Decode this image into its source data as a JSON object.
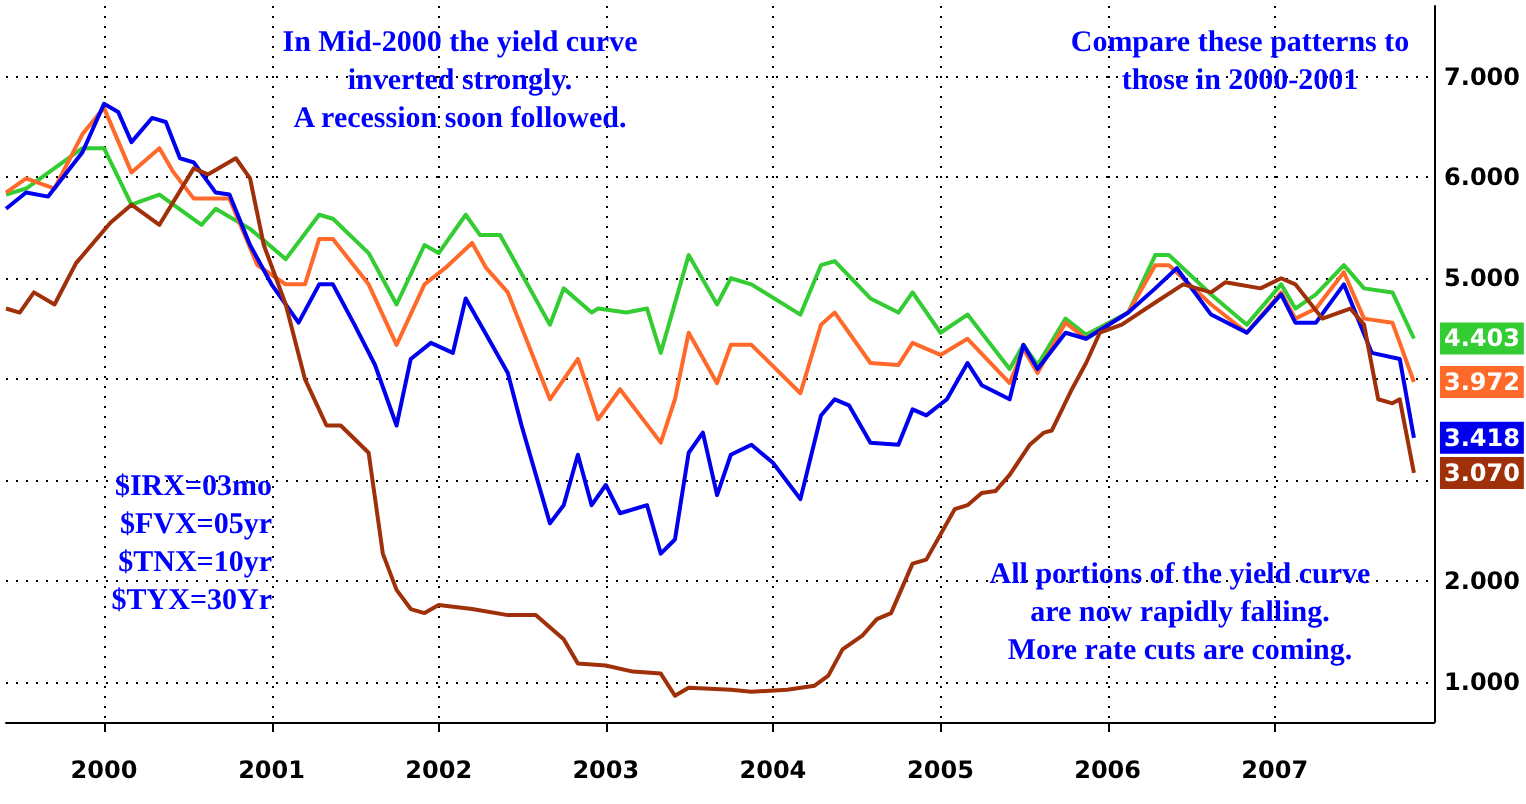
{
  "chart_data": {
    "type": "line",
    "annotations": [
      "In Mid-2000 the yield curve\ninverted strongly.\nA recession soon followed.",
      "Compare these patterns to\nthose in 2000-2001",
      "All portions of the yield curve\nare now rapidly falling.\nMore rate cuts are coming.",
      "$IRX=03mo\n$FVX=05yr\n$TNX=10yr\n$TYX=30Yr"
    ],
    "xlim": [
      "1999-06-01",
      "2007-12-15"
    ],
    "xticks": [
      {
        "value": "2000-01-01",
        "label": "2000"
      },
      {
        "value": "2001-01-01",
        "label": "2001"
      },
      {
        "value": "2002-01-01",
        "label": "2002"
      },
      {
        "value": "2003-01-01",
        "label": "2003"
      },
      {
        "value": "2004-01-01",
        "label": "2004"
      },
      {
        "value": "2005-01-01",
        "label": "2005"
      },
      {
        "value": "2006-01-01",
        "label": "2006"
      },
      {
        "value": "2007-01-01",
        "label": "2007"
      }
    ],
    "ylim": [
      0.6,
      7.7
    ],
    "yticks": [
      {
        "value": 1,
        "label": "1.000"
      },
      {
        "value": 2,
        "label": "2.000"
      },
      {
        "value": 3,
        "label": null
      },
      {
        "value": 4,
        "label": null
      },
      {
        "value": 5,
        "label": "5.000"
      },
      {
        "value": 6,
        "label": "6.000"
      },
      {
        "value": 7,
        "label": "7.000"
      }
    ],
    "grid": true,
    "series": [
      {
        "color": "#33cc33",
        "x": [
          "1999-06-01",
          "1999-07-15",
          "1999-11-15",
          "2000-01-01",
          "2000-03-01",
          "2000-05-01",
          "2000-08-01",
          "2000-09-01",
          "2000-11-15",
          "2001-02-01",
          "2001-04-15",
          "2001-05-15",
          "2001-08-01",
          "2001-10-01",
          "2001-12-01",
          "2002-01-01",
          "2002-03-01",
          "2002-04-01",
          "2002-05-15",
          "2002-09-01",
          "2002-10-01",
          "2002-12-01",
          "2002-12-15",
          "2003-02-15",
          "2003-04-01",
          "2003-05-01",
          "2003-07-01",
          "2003-09-01",
          "2003-10-01",
          "2003-11-15",
          "2004-03-01",
          "2004-04-15",
          "2004-05-15",
          "2004-08-01",
          "2004-10-01",
          "2004-11-01",
          "2005-01-01",
          "2005-03-01",
          "2005-06-01",
          "2005-07-01",
          "2005-08-01",
          "2005-10-01",
          "2005-11-15",
          "2006-02-15",
          "2006-04-15",
          "2006-05-15",
          "2006-08-15",
          "2006-11-01",
          "2007-01-15",
          "2007-02-15",
          "2007-04-01",
          "2007-06-01",
          "2007-07-15",
          "2007-09-15",
          "2007-11-01"
        ],
        "values": [
          5.83,
          5.89,
          6.29,
          6.29,
          5.73,
          5.83,
          5.53,
          5.69,
          5.49,
          5.19,
          5.63,
          5.59,
          5.25,
          4.74,
          5.33,
          5.25,
          5.63,
          5.43,
          5.43,
          4.54,
          4.9,
          4.66,
          4.7,
          4.66,
          4.7,
          4.26,
          5.23,
          4.74,
          5.0,
          4.94,
          4.64,
          5.13,
          5.17,
          4.8,
          4.66,
          4.86,
          4.46,
          4.64,
          4.1,
          4.34,
          4.14,
          4.6,
          4.44,
          4.66,
          5.23,
          5.23,
          4.84,
          4.54,
          4.94,
          4.7,
          4.84,
          5.13,
          4.9,
          4.86,
          4.403
        ],
        "value_labels": [
          null,
          null,
          null,
          null,
          null,
          null,
          null,
          null,
          null,
          null,
          null,
          null,
          null,
          null,
          null,
          null,
          null,
          null,
          null,
          null,
          null,
          null,
          null,
          null,
          null,
          null,
          null,
          null,
          null,
          null,
          null,
          null,
          null,
          null,
          null,
          null,
          null,
          null,
          null,
          null,
          null,
          null,
          null,
          null,
          null,
          null,
          null,
          null,
          null,
          null,
          null,
          null,
          null,
          null,
          "4.403"
        ]
      },
      {
        "color": "#ff6a2a",
        "x": [
          "1999-06-01",
          "1999-07-15",
          "1999-09-15",
          "1999-11-15",
          "2000-01-01",
          "2000-03-01",
          "2000-05-01",
          "2000-06-01",
          "2000-07-15",
          "2000-10-01",
          "2000-12-01",
          "2001-02-01",
          "2001-03-15",
          "2001-04-15",
          "2001-05-15",
          "2001-08-01",
          "2001-10-01",
          "2001-12-01",
          "2002-01-15",
          "2002-03-15",
          "2002-04-15",
          "2002-06-01",
          "2002-09-01",
          "2002-11-01",
          "2002-12-15",
          "2003-02-01",
          "2003-05-01",
          "2003-06-01",
          "2003-07-01",
          "2003-09-01",
          "2003-10-01",
          "2003-11-15",
          "2004-03-01",
          "2004-04-15",
          "2004-05-15",
          "2004-08-01",
          "2004-10-01",
          "2004-11-01",
          "2005-01-01",
          "2005-03-01",
          "2005-06-01",
          "2005-07-01",
          "2005-08-01",
          "2005-10-01",
          "2005-11-15",
          "2006-02-15",
          "2006-04-15",
          "2006-05-15",
          "2006-08-15",
          "2006-11-01",
          "2007-01-15",
          "2007-02-15",
          "2007-04-01",
          "2007-06-01",
          "2007-07-15",
          "2007-09-15",
          "2007-11-01"
        ],
        "values": [
          5.85,
          5.99,
          5.89,
          6.43,
          6.69,
          6.05,
          6.29,
          6.05,
          5.79,
          5.79,
          5.13,
          4.94,
          4.94,
          5.39,
          5.39,
          4.94,
          4.34,
          4.94,
          5.1,
          5.35,
          5.1,
          4.86,
          3.8,
          4.2,
          3.6,
          3.9,
          3.37,
          3.8,
          4.46,
          3.96,
          4.34,
          4.34,
          3.86,
          4.54,
          4.66,
          4.16,
          4.14,
          4.36,
          4.24,
          4.4,
          3.96,
          4.3,
          4.06,
          4.56,
          4.4,
          4.66,
          5.13,
          5.13,
          4.74,
          4.46,
          4.86,
          4.6,
          4.7,
          5.06,
          4.6,
          4.56,
          3.972
        ],
        "value_labels": [
          null,
          null,
          null,
          null,
          null,
          null,
          null,
          null,
          null,
          null,
          null,
          null,
          null,
          null,
          null,
          null,
          null,
          null,
          null,
          null,
          null,
          null,
          null,
          null,
          null,
          null,
          null,
          null,
          null,
          null,
          null,
          null,
          null,
          null,
          null,
          null,
          null,
          null,
          null,
          null,
          null,
          null,
          null,
          null,
          null,
          null,
          null,
          null,
          null,
          null,
          null,
          null,
          null,
          null,
          null,
          null,
          "3.972"
        ]
      },
      {
        "color": "#0000ee",
        "x": [
          "1999-06-01",
          "1999-07-15",
          "1999-09-01",
          "1999-11-15",
          "2000-01-01",
          "2000-02-01",
          "2000-03-01",
          "2000-04-15",
          "2000-05-15",
          "2000-06-15",
          "2000-07-15",
          "2000-09-01",
          "2000-10-01",
          "2000-11-15",
          "2001-01-01",
          "2001-03-01",
          "2001-04-15",
          "2001-05-15",
          "2001-07-01",
          "2001-08-15",
          "2001-10-01",
          "2001-11-01",
          "2001-12-15",
          "2002-02-01",
          "2002-03-01",
          "2002-04-15",
          "2002-06-01",
          "2002-07-01",
          "2002-09-01",
          "2002-10-01",
          "2002-11-01",
          "2002-12-01",
          "2003-01-01",
          "2003-02-01",
          "2003-04-01",
          "2003-05-01",
          "2003-06-01",
          "2003-07-01",
          "2003-08-01",
          "2003-09-01",
          "2003-10-01",
          "2003-11-15",
          "2004-01-01",
          "2004-03-01",
          "2004-04-15",
          "2004-05-15",
          "2004-06-15",
          "2004-08-01",
          "2004-10-01",
          "2004-11-01",
          "2004-12-01",
          "2005-01-15",
          "2005-03-01",
          "2005-04-01",
          "2005-06-01",
          "2005-07-01",
          "2005-08-01",
          "2005-10-01",
          "2005-11-15",
          "2006-02-15",
          "2006-04-15",
          "2006-06-01",
          "2006-08-15",
          "2006-11-01",
          "2007-01-15",
          "2007-02-15",
          "2007-04-01",
          "2007-06-01",
          "2007-08-01",
          "2007-10-01",
          "2007-11-01"
        ],
        "values": [
          5.69,
          5.85,
          5.81,
          6.25,
          6.73,
          6.65,
          6.35,
          6.59,
          6.55,
          6.19,
          6.15,
          5.85,
          5.83,
          5.33,
          4.94,
          4.56,
          4.94,
          4.94,
          4.54,
          4.14,
          3.54,
          4.2,
          4.36,
          4.26,
          4.8,
          4.44,
          4.06,
          3.54,
          2.57,
          2.75,
          3.25,
          2.75,
          2.95,
          2.67,
          2.75,
          2.27,
          2.41,
          3.27,
          3.47,
          2.85,
          3.25,
          3.35,
          3.17,
          2.81,
          3.64,
          3.8,
          3.74,
          3.37,
          3.35,
          3.7,
          3.64,
          3.8,
          4.16,
          3.94,
          3.8,
          4.34,
          4.1,
          4.46,
          4.4,
          4.66,
          4.9,
          5.1,
          4.64,
          4.46,
          4.84,
          4.56,
          4.56,
          4.94,
          4.26,
          4.2,
          3.418
        ],
        "value_labels": [
          null,
          null,
          null,
          null,
          null,
          null,
          null,
          null,
          null,
          null,
          null,
          null,
          null,
          null,
          null,
          null,
          null,
          null,
          null,
          null,
          null,
          null,
          null,
          null,
          null,
          null,
          null,
          null,
          null,
          null,
          null,
          null,
          null,
          null,
          null,
          null,
          null,
          null,
          null,
          null,
          null,
          null,
          null,
          null,
          null,
          null,
          null,
          null,
          null,
          null,
          null,
          null,
          null,
          null,
          null,
          null,
          null,
          null,
          null,
          null,
          null,
          null,
          null,
          null,
          null,
          null,
          null,
          null,
          null,
          null,
          "3.418"
        ]
      },
      {
        "color": "#a0300a",
        "x": [
          "1999-06-01",
          "1999-07-01",
          "1999-08-01",
          "1999-09-15",
          "1999-11-01",
          "2000-01-15",
          "2000-03-01",
          "2000-05-01",
          "2000-07-15",
          "2000-08-15",
          "2000-10-15",
          "2000-11-15",
          "2000-12-15",
          "2001-02-01",
          "2001-03-15",
          "2001-05-01",
          "2001-06-01",
          "2001-08-01",
          "2001-09-01",
          "2001-10-01",
          "2001-11-01",
          "2001-12-01",
          "2002-01-01",
          "2002-03-15",
          "2002-06-01",
          "2002-08-01",
          "2002-10-01",
          "2002-11-01",
          "2003-01-01",
          "2003-03-01",
          "2003-05-01",
          "2003-06-01",
          "2003-07-01",
          "2003-10-01",
          "2003-11-15",
          "2004-02-01",
          "2004-04-01",
          "2004-05-01",
          "2004-06-01",
          "2004-07-15",
          "2004-08-15",
          "2004-09-15",
          "2004-11-01",
          "2004-12-01",
          "2005-02-01",
          "2005-03-01",
          "2005-04-01",
          "2005-05-01",
          "2005-06-01",
          "2005-07-15",
          "2005-08-15",
          "2005-09-01",
          "2005-10-15",
          "2005-11-15",
          "2005-12-15",
          "2006-02-01",
          "2006-04-15",
          "2006-06-15",
          "2006-08-15",
          "2006-09-15",
          "2006-12-01",
          "2007-01-15",
          "2007-02-15",
          "2007-04-15",
          "2007-06-15",
          "2007-07-15",
          "2007-08-15",
          "2007-09-15",
          "2007-10-01",
          "2007-11-01"
        ],
        "values": [
          4.7,
          4.66,
          4.86,
          4.74,
          5.15,
          5.55,
          5.73,
          5.53,
          6.09,
          6.03,
          6.19,
          5.99,
          5.33,
          4.74,
          4.0,
          3.54,
          3.54,
          3.27,
          2.27,
          1.91,
          1.72,
          1.68,
          1.76,
          1.72,
          1.66,
          1.66,
          1.42,
          1.18,
          1.16,
          1.1,
          1.08,
          0.86,
          0.94,
          0.92,
          0.9,
          0.92,
          0.96,
          1.06,
          1.32,
          1.46,
          1.62,
          1.68,
          2.17,
          2.21,
          2.71,
          2.75,
          2.87,
          2.89,
          3.05,
          3.35,
          3.47,
          3.49,
          3.9,
          4.16,
          4.46,
          4.54,
          4.76,
          4.94,
          4.86,
          4.96,
          4.9,
          5.0,
          4.94,
          4.6,
          4.7,
          4.54,
          3.8,
          3.76,
          3.8,
          3.07
        ],
        "value_labels": [
          null,
          null,
          null,
          null,
          null,
          null,
          null,
          null,
          null,
          null,
          null,
          null,
          null,
          null,
          null,
          null,
          null,
          null,
          null,
          null,
          null,
          null,
          null,
          null,
          null,
          null,
          null,
          null,
          null,
          null,
          null,
          null,
          null,
          null,
          null,
          null,
          null,
          null,
          null,
          null,
          null,
          null,
          null,
          null,
          null,
          null,
          null,
          null,
          null,
          null,
          null,
          null,
          null,
          null,
          null,
          null,
          null,
          null,
          null,
          null,
          null,
          null,
          null,
          null,
          null,
          null,
          null,
          null,
          null,
          "3.070"
        ]
      }
    ]
  }
}
